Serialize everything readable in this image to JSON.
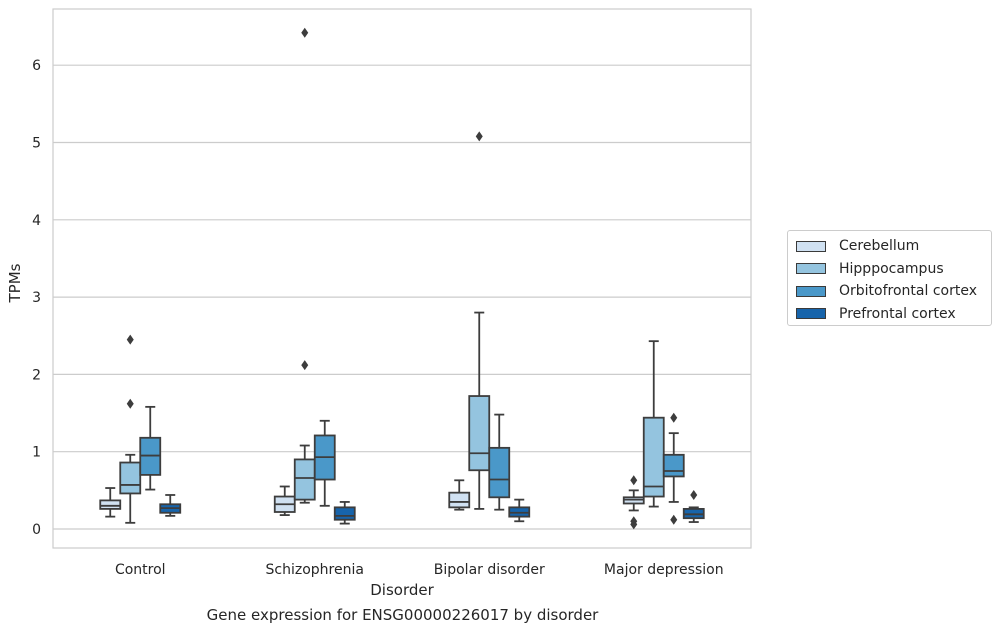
{
  "chart_data": {
    "type": "box",
    "title": "",
    "caption": "Gene expression for ENSG00000226017 by disorder",
    "xlabel": "Disorder",
    "ylabel": "TPMs",
    "ylim": [
      -0.25,
      6.75
    ],
    "yticks": [
      0,
      1,
      2,
      3,
      4,
      5,
      6
    ],
    "grid": "horizontal",
    "legend_position": "right-outside",
    "categories": [
      "Control",
      "Schizophrenia",
      "Bipolar disorder",
      "Major depression"
    ],
    "series": [
      {
        "name": "Cerebellum",
        "color": "#d0e1f2",
        "boxes": [
          {
            "whislo": 0.16,
            "q1": 0.26,
            "med": 0.3,
            "q3": 0.37,
            "whishi": 0.53,
            "fliers": []
          },
          {
            "whislo": 0.18,
            "q1": 0.22,
            "med": 0.32,
            "q3": 0.42,
            "whishi": 0.55,
            "fliers": []
          },
          {
            "whislo": 0.25,
            "q1": 0.28,
            "med": 0.35,
            "q3": 0.47,
            "whishi": 0.63,
            "fliers": []
          },
          {
            "whislo": 0.24,
            "q1": 0.33,
            "med": 0.38,
            "q3": 0.41,
            "whishi": 0.5,
            "fliers": [
              0.63,
              0.1,
              0.06
            ]
          }
        ]
      },
      {
        "name": "Hipppocampus",
        "color": "#94c4df",
        "boxes": [
          {
            "whislo": 0.08,
            "q1": 0.46,
            "med": 0.57,
            "q3": 0.86,
            "whishi": 0.96,
            "fliers": [
              1.62,
              2.45
            ]
          },
          {
            "whislo": 0.34,
            "q1": 0.38,
            "med": 0.66,
            "q3": 0.9,
            "whishi": 1.08,
            "fliers": [
              2.12,
              6.42
            ]
          },
          {
            "whislo": 0.26,
            "q1": 0.76,
            "med": 0.98,
            "q3": 1.72,
            "whishi": 2.8,
            "fliers": [
              5.08
            ]
          },
          {
            "whislo": 0.29,
            "q1": 0.42,
            "med": 0.55,
            "q3": 1.44,
            "whishi": 2.43,
            "fliers": []
          }
        ]
      },
      {
        "name": "Orbitofrontal cortex",
        "color": "#4a98c9",
        "boxes": [
          {
            "whislo": 0.51,
            "q1": 0.7,
            "med": 0.95,
            "q3": 1.18,
            "whishi": 1.58,
            "fliers": []
          },
          {
            "whislo": 0.3,
            "q1": 0.64,
            "med": 0.93,
            "q3": 1.21,
            "whishi": 1.4,
            "fliers": []
          },
          {
            "whislo": 0.25,
            "q1": 0.41,
            "med": 0.64,
            "q3": 1.05,
            "whishi": 1.48,
            "fliers": []
          },
          {
            "whislo": 0.35,
            "q1": 0.68,
            "med": 0.75,
            "q3": 0.96,
            "whishi": 1.24,
            "fliers": [
              1.44,
              0.12
            ]
          }
        ]
      },
      {
        "name": "Prefrontal cortex",
        "color": "#1764ab",
        "boxes": [
          {
            "whislo": 0.17,
            "q1": 0.21,
            "med": 0.27,
            "q3": 0.32,
            "whishi": 0.44,
            "fliers": []
          },
          {
            "whislo": 0.07,
            "q1": 0.12,
            "med": 0.17,
            "q3": 0.28,
            "whishi": 0.35,
            "fliers": []
          },
          {
            "whislo": 0.1,
            "q1": 0.16,
            "med": 0.21,
            "q3": 0.28,
            "whishi": 0.38,
            "fliers": []
          },
          {
            "whislo": 0.09,
            "q1": 0.14,
            "med": 0.19,
            "q3": 0.26,
            "whishi": 0.28,
            "fliers": [
              0.44
            ]
          }
        ]
      }
    ]
  }
}
